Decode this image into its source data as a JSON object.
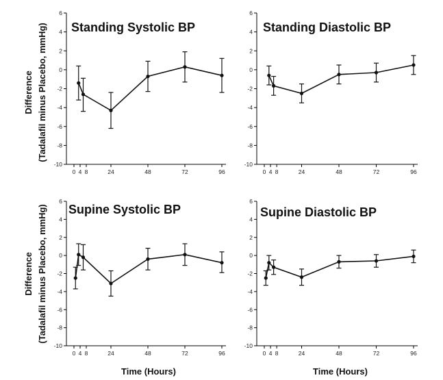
{
  "figure": {
    "ylabel_line1": "Difference",
    "ylabel_line2": "(Tadalafil minus Placebo, mmHg)",
    "xlabel": "Time (Hours)"
  },
  "chart_data": [
    {
      "type": "line",
      "title": "Standing Systolic BP",
      "xlabel": "",
      "ylabel": "Difference (Tadalafil minus Placebo, mmHg)",
      "xticks": [
        0,
        4,
        8,
        24,
        48,
        72,
        96
      ],
      "yticks": [
        6,
        4,
        2,
        0,
        -2,
        -4,
        -6,
        -8,
        -10
      ],
      "xlim": [
        -2,
        98
      ],
      "ylim": [
        -10,
        6
      ],
      "points": [
        {
          "x": 3,
          "y": -1.4,
          "lo": -3.2,
          "hi": 0.4
        },
        {
          "x": 6,
          "y": -2.6,
          "lo": -4.4,
          "hi": -0.9
        },
        {
          "x": 24,
          "y": -4.3,
          "lo": -6.2,
          "hi": -2.4
        },
        {
          "x": 48,
          "y": -0.7,
          "lo": -2.3,
          "hi": 0.9
        },
        {
          "x": 72,
          "y": 0.3,
          "lo": -1.3,
          "hi": 1.9
        },
        {
          "x": 96,
          "y": -0.6,
          "lo": -2.4,
          "hi": 1.2
        }
      ]
    },
    {
      "type": "line",
      "title": "Standing Diastolic BP",
      "xlabel": "",
      "ylabel": "",
      "xticks": [
        0,
        4,
        8,
        24,
        48,
        72,
        96
      ],
      "yticks": [
        6,
        4,
        2,
        0,
        -2,
        -4,
        -6,
        -8,
        -10
      ],
      "xlim": [
        -2,
        98
      ],
      "ylim": [
        -10,
        6
      ],
      "points": [
        {
          "x": 3,
          "y": -0.6,
          "lo": -1.6,
          "hi": 0.4
        },
        {
          "x": 6,
          "y": -1.7,
          "lo": -2.7,
          "hi": -0.7
        },
        {
          "x": 24,
          "y": -2.5,
          "lo": -3.5,
          "hi": -1.5
        },
        {
          "x": 48,
          "y": -0.5,
          "lo": -1.5,
          "hi": 0.5
        },
        {
          "x": 72,
          "y": -0.3,
          "lo": -1.3,
          "hi": 0.7
        },
        {
          "x": 96,
          "y": 0.5,
          "lo": -0.5,
          "hi": 1.5
        }
      ]
    },
    {
      "type": "line",
      "title": "Supine Systolic BP",
      "xlabel": "Time (Hours)",
      "ylabel": "Difference (Tadalafil minus Placebo, mmHg)",
      "xticks": [
        0,
        4,
        8,
        24,
        48,
        72,
        96
      ],
      "yticks": [
        6,
        4,
        2,
        0,
        -2,
        -4,
        -6,
        -8,
        -10
      ],
      "xlim": [
        -2,
        98
      ],
      "ylim": [
        -10,
        6
      ],
      "points": [
        {
          "x": 1,
          "y": -2.5,
          "lo": -3.7,
          "hi": -1.3
        },
        {
          "x": 3,
          "y": 0.1,
          "lo": -1.1,
          "hi": 1.3
        },
        {
          "x": 6,
          "y": -0.2,
          "lo": -1.6,
          "hi": 1.2
        },
        {
          "x": 24,
          "y": -3.1,
          "lo": -4.5,
          "hi": -1.7
        },
        {
          "x": 48,
          "y": -0.4,
          "lo": -1.6,
          "hi": 0.8
        },
        {
          "x": 72,
          "y": 0.1,
          "lo": -1.1,
          "hi": 1.3
        },
        {
          "x": 96,
          "y": -0.8,
          "lo": -1.9,
          "hi": 0.4
        }
      ]
    },
    {
      "type": "line",
      "title": "Supine Diastolic BP",
      "xlabel": "Time (Hours)",
      "ylabel": "",
      "xticks": [
        0,
        4,
        8,
        24,
        48,
        72,
        96
      ],
      "yticks": [
        6,
        4,
        2,
        0,
        -2,
        -4,
        -6,
        -8,
        -10
      ],
      "xlim": [
        -2,
        98
      ],
      "ylim": [
        -10,
        6
      ],
      "points": [
        {
          "x": 1,
          "y": -2.5,
          "lo": -3.3,
          "hi": -1.7
        },
        {
          "x": 3,
          "y": -0.8,
          "lo": -1.6,
          "hi": 0.0
        },
        {
          "x": 6,
          "y": -1.3,
          "lo": -2.1,
          "hi": -0.5
        },
        {
          "x": 24,
          "y": -2.4,
          "lo": -3.3,
          "hi": -1.5
        },
        {
          "x": 48,
          "y": -0.7,
          "lo": -1.4,
          "hi": 0.0
        },
        {
          "x": 72,
          "y": -0.6,
          "lo": -1.3,
          "hi": 0.1
        },
        {
          "x": 96,
          "y": -0.1,
          "lo": -0.8,
          "hi": 0.6
        }
      ]
    }
  ]
}
